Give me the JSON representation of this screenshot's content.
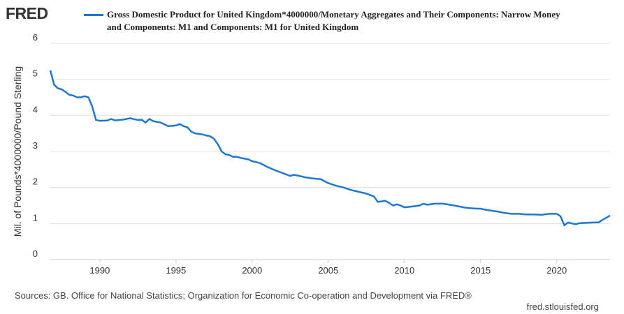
{
  "logo": "FRED",
  "chart_data": {
    "type": "line",
    "ylabel": "Mil. of Pounds*4000000/Pound Sterling",
    "series": [
      {
        "name": "Gross Domestic Product for United Kingdom*4000000/Monetary Aggregates and Their Components: Narrow Money and Components: M1 and Components: M1 for United Kingdom",
        "color": "#1f77d4",
        "x": [
          1986.75,
          1987.0,
          1987.25,
          1987.5,
          1987.75,
          1988.0,
          1988.25,
          1988.5,
          1988.75,
          1989.0,
          1989.25,
          1989.5,
          1989.75,
          1990.0,
          1990.5,
          1990.75,
          1991.0,
          1991.5,
          1992.0,
          1992.5,
          1992.75,
          1993.0,
          1993.25,
          1993.5,
          1994.0,
          1994.5,
          1995.0,
          1995.25,
          1995.5,
          1995.75,
          1996.0,
          1996.25,
          1996.75,
          1997.0,
          1997.25,
          1997.5,
          1997.75,
          1998.0,
          1998.25,
          1998.5,
          1998.75,
          1999.0,
          1999.25,
          1999.75,
          2000.0,
          2000.5,
          2001.0,
          2001.5,
          2002.0,
          2002.5,
          2002.75,
          2003.0,
          2003.5,
          2004.0,
          2004.5,
          2005.0,
          2005.5,
          2006.0,
          2006.5,
          2007.0,
          2007.5,
          2008.0,
          2008.25,
          2008.75,
          2009.0,
          2009.25,
          2009.5,
          2009.75,
          2010.0,
          2010.5,
          2011.0,
          2011.25,
          2011.5,
          2012.0,
          2012.5,
          2013.0,
          2013.5,
          2014.0,
          2014.5,
          2015.0,
          2015.5,
          2016.0,
          2016.5,
          2017.0,
          2017.5,
          2018.0,
          2018.5,
          2019.0,
          2019.5,
          2020.0,
          2020.25,
          2020.5,
          2020.75,
          2021.0,
          2021.25,
          2021.5,
          2022.0,
          2022.5,
          2022.75,
          2023.0,
          2023.5
        ],
        "values": [
          5.25,
          4.85,
          4.75,
          4.72,
          4.65,
          4.57,
          4.55,
          4.5,
          4.5,
          4.53,
          4.5,
          4.25,
          3.87,
          3.85,
          3.86,
          3.9,
          3.86,
          3.88,
          3.92,
          3.87,
          3.88,
          3.8,
          3.9,
          3.84,
          3.8,
          3.7,
          3.72,
          3.76,
          3.7,
          3.67,
          3.55,
          3.5,
          3.47,
          3.44,
          3.42,
          3.35,
          3.2,
          3.0,
          2.92,
          2.9,
          2.85,
          2.85,
          2.82,
          2.78,
          2.73,
          2.68,
          2.57,
          2.48,
          2.4,
          2.32,
          2.35,
          2.33,
          2.28,
          2.25,
          2.23,
          2.12,
          2.05,
          2.0,
          1.93,
          1.88,
          1.83,
          1.75,
          1.6,
          1.63,
          1.57,
          1.5,
          1.53,
          1.5,
          1.45,
          1.47,
          1.5,
          1.55,
          1.52,
          1.55,
          1.55,
          1.52,
          1.48,
          1.44,
          1.42,
          1.41,
          1.37,
          1.34,
          1.3,
          1.27,
          1.27,
          1.25,
          1.25,
          1.24,
          1.27,
          1.27,
          1.2,
          0.95,
          1.03,
          1.0,
          0.98,
          1.01,
          1.02,
          1.03,
          1.03,
          1.1,
          1.22
        ]
      }
    ],
    "xlim": [
      1986.75,
      2023.5
    ],
    "xticks": [
      1990,
      1995,
      2000,
      2005,
      2010,
      2015,
      2020
    ],
    "ylim": [
      0,
      6
    ],
    "yticks": [
      0,
      1,
      2,
      3,
      4,
      5,
      6
    ],
    "grid": true,
    "source": "Sources: GB. Office for National Statistics; Organization for Economic Co-operation and Development via FRED®",
    "site": "fred.stlouisfed.org"
  }
}
